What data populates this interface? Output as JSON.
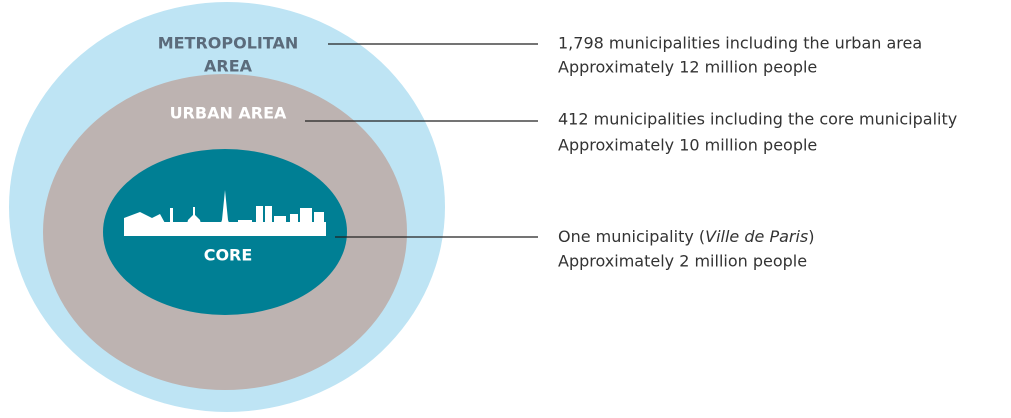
{
  "rings": [
    {
      "label": [
        "METROPOLITAN",
        "AREA"
      ],
      "description": [
        "1,798 municipalities including the urban area",
        "Approximately 12 million people"
      ]
    },
    {
      "label": [
        "URBAN AREA"
      ],
      "description": [
        "412 municipalities including the core municipality",
        "Approximately 10 million people"
      ]
    },
    {
      "label": [
        "CORE"
      ],
      "description": [
        [
          "One municipality (",
          "Ville de Paris",
          ")"
        ],
        "Approximately 2 million people"
      ]
    }
  ]
}
